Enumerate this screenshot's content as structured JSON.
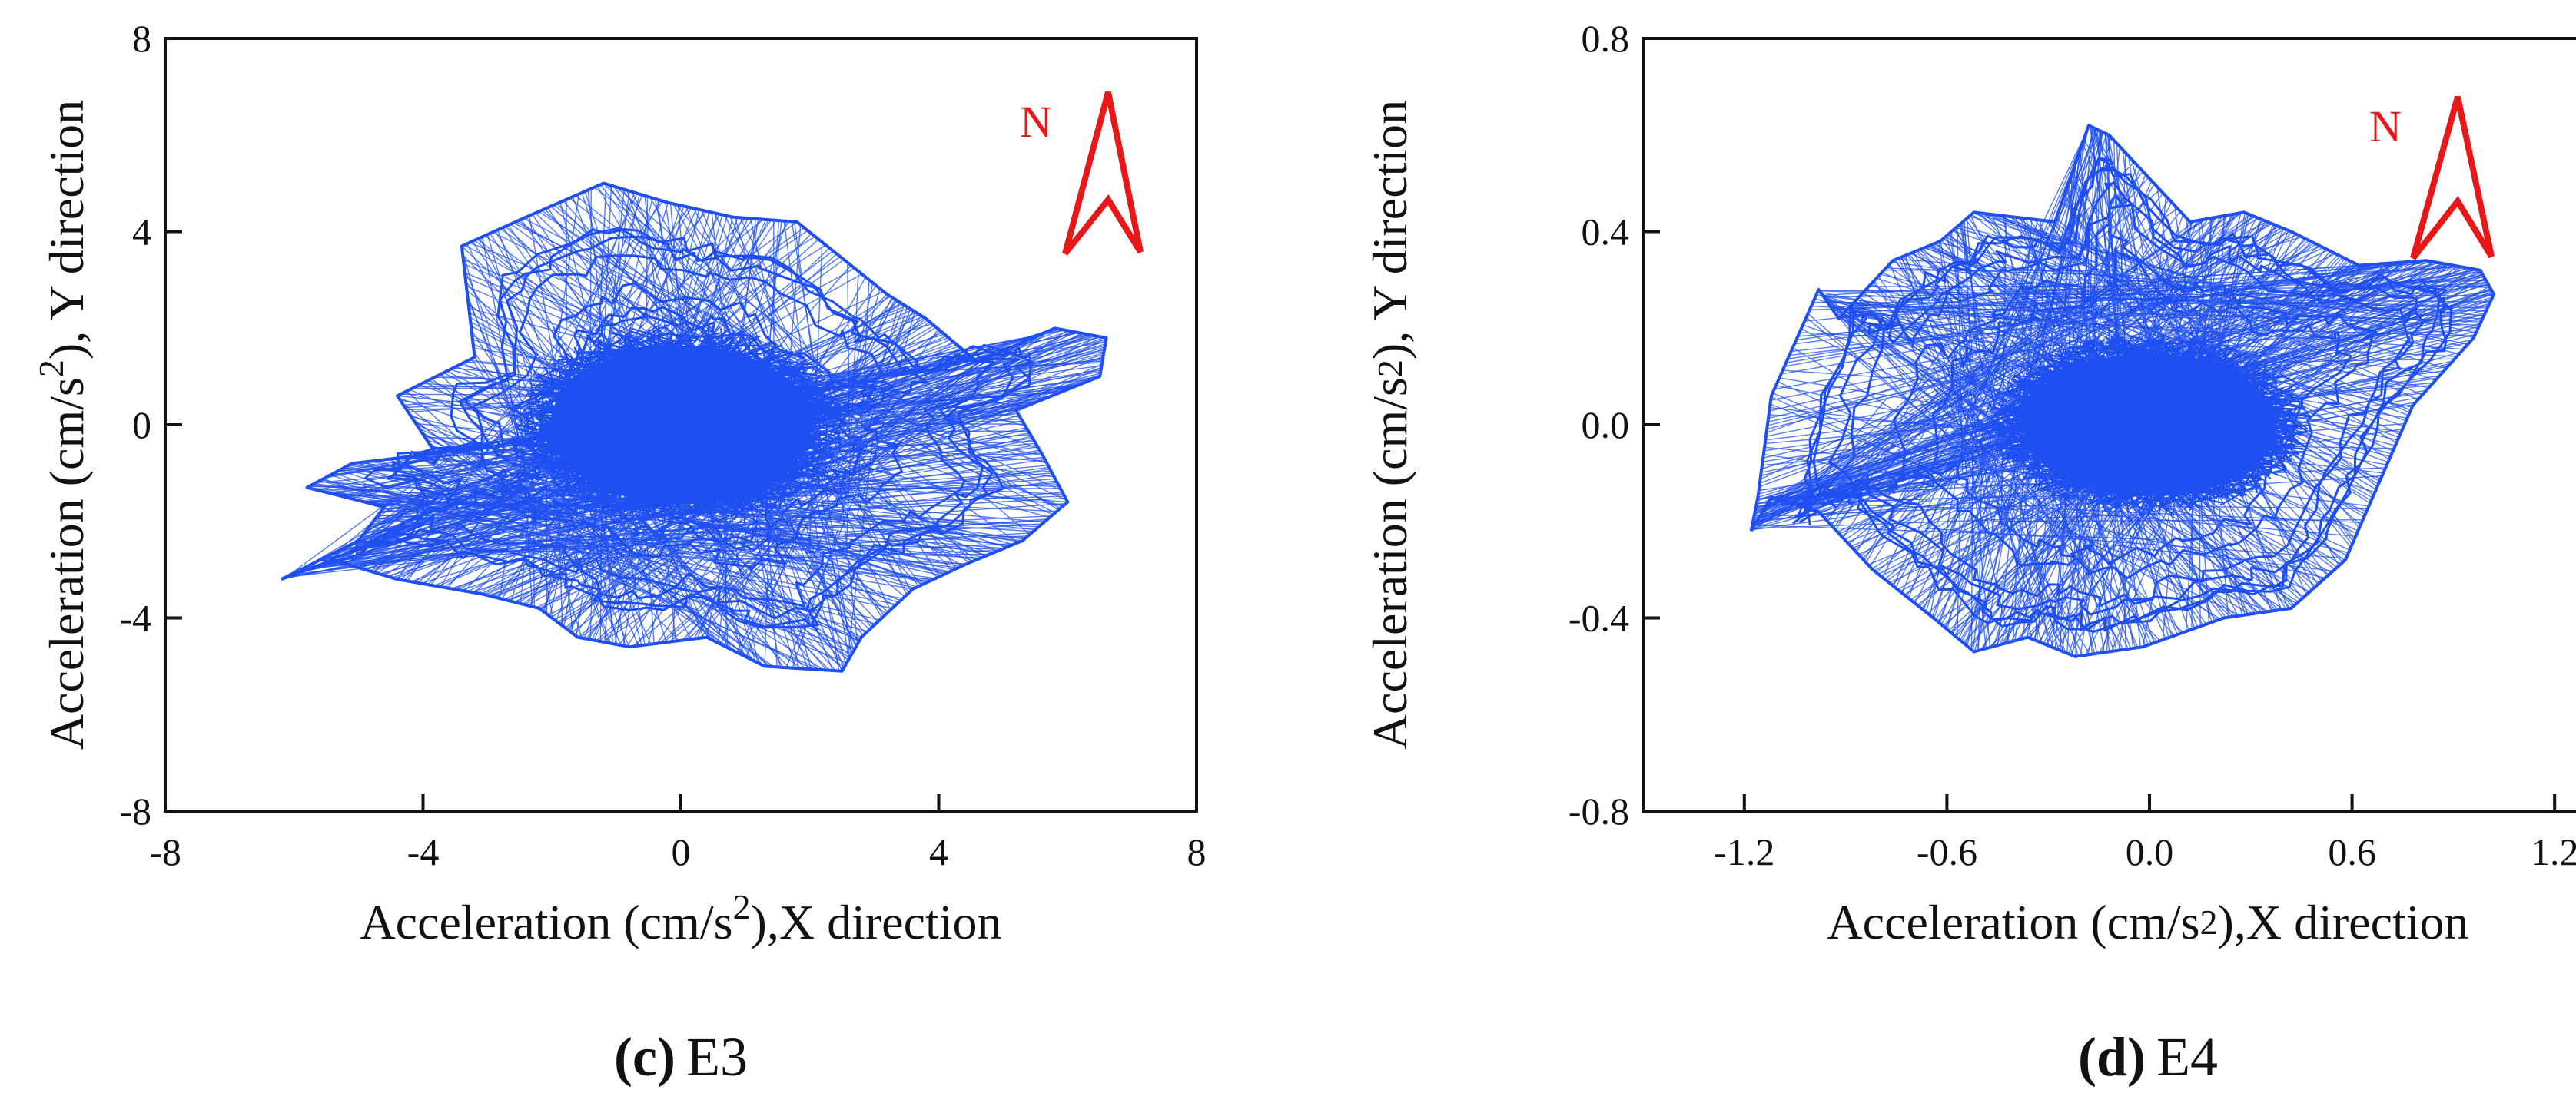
{
  "colors": {
    "trace": "#1f4ff0",
    "arrow": "#e81818",
    "axis": "#111111",
    "background": "#ffffff"
  },
  "chart_data": [
    {
      "id": "c",
      "type": "scatter",
      "subtype": "particle-motion trajectory (hodogram)",
      "caption": {
        "letter": "(c)",
        "station": "E3"
      },
      "xlabel": {
        "prefix": "Acceleration (cm/s",
        "sup": "2",
        "suffix": "),X direction"
      },
      "ylabel": {
        "prefix": "Acceleration (cm/s",
        "sup": "2",
        "suffix": "), Y direction"
      },
      "xlim": [
        -8,
        8
      ],
      "ylim": [
        -8,
        8
      ],
      "xticks": [
        -8,
        -4,
        0,
        4,
        8
      ],
      "yticks": [
        -8,
        -4,
        0,
        4,
        8
      ],
      "xtick_labels": [
        "-8",
        "-4",
        "0",
        "4",
        "8"
      ],
      "ytick_labels": [
        "-8",
        "-4",
        "0",
        "4",
        "8"
      ],
      "north_label": "N",
      "series": [
        {
          "name": "E3 trajectory",
          "envelope_x": [
            -6.2,
            -5.0,
            -4.6,
            -5.8,
            -5.1,
            -3.8,
            -4.4,
            -3.2,
            -3.4,
            -2.4,
            -1.2,
            -0.2,
            0.8,
            1.8,
            3.2,
            3.8,
            4.6,
            5.8,
            6.6,
            6.5,
            5.2,
            5.6,
            6.0,
            5.3,
            4.4,
            3.6,
            2.8,
            2.5,
            1.3,
            0.4,
            -0.8,
            -1.6,
            -2.2,
            -3.1,
            -4.4,
            -5.4,
            -6.2
          ],
          "envelope_y": [
            -3.2,
            -2.4,
            -1.7,
            -1.3,
            -0.8,
            -0.6,
            0.6,
            1.4,
            3.7,
            4.3,
            5.0,
            4.6,
            4.3,
            4.2,
            2.7,
            2.2,
            1.3,
            2.0,
            1.8,
            1.0,
            0.3,
            -0.6,
            -1.6,
            -2.4,
            -2.9,
            -3.4,
            -4.4,
            -5.1,
            -5.0,
            -4.4,
            -4.6,
            -4.4,
            -3.8,
            -3.5,
            -3.2,
            -2.8,
            -3.2
          ],
          "core_rx": 2.6,
          "core_ry": 2.1
        }
      ]
    },
    {
      "id": "d",
      "type": "scatter",
      "subtype": "particle-motion trajectory (hodogram)",
      "caption": {
        "letter": "(d)",
        "station": "E4"
      },
      "xlabel": {
        "prefix": "Acceleration (cm/s",
        "sup": "2",
        "suffix": "),X direction"
      },
      "ylabel": {
        "prefix": "Acceleration (cm/s",
        "sup": "2",
        "suffix": "), Y direction"
      },
      "xlim": [
        -1.5,
        1.5
      ],
      "ylim": [
        -0.8,
        0.8
      ],
      "xticks": [
        -1.2,
        -0.6,
        0.0,
        0.6,
        1.2
      ],
      "yticks": [
        -0.8,
        -0.4,
        0.0,
        0.4,
        0.8
      ],
      "xtick_labels": [
        "-1.2",
        "-0.6",
        "0.0",
        "0.6",
        "1.2"
      ],
      "ytick_labels": [
        "-0.8",
        "-0.4",
        "0.0",
        "0.4",
        "0.8"
      ],
      "north_label": "N",
      "series": [
        {
          "name": "E4 trajectory",
          "envelope_x": [
            -1.18,
            -1.16,
            -1.12,
            -0.98,
            -0.92,
            -0.76,
            -0.62,
            -0.52,
            -0.28,
            -0.18,
            -0.12,
            0.12,
            0.28,
            0.42,
            0.62,
            0.82,
            0.98,
            1.02,
            0.96,
            0.78,
            0.68,
            0.58,
            0.42,
            0.22,
            -0.02,
            -0.22,
            -0.36,
            -0.52,
            -0.64,
            -0.82,
            -0.98,
            -1.12,
            -1.18
          ],
          "envelope_y": [
            -0.22,
            -0.15,
            0.06,
            0.28,
            0.22,
            0.34,
            0.38,
            0.44,
            0.42,
            0.62,
            0.6,
            0.42,
            0.44,
            0.4,
            0.33,
            0.34,
            0.32,
            0.27,
            0.18,
            0.04,
            -0.12,
            -0.28,
            -0.38,
            -0.4,
            -0.46,
            -0.48,
            -0.44,
            -0.47,
            -0.4,
            -0.3,
            -0.18,
            -0.15,
            -0.22
          ],
          "core_rx": 0.48,
          "core_ry": 0.19
        }
      ]
    }
  ]
}
